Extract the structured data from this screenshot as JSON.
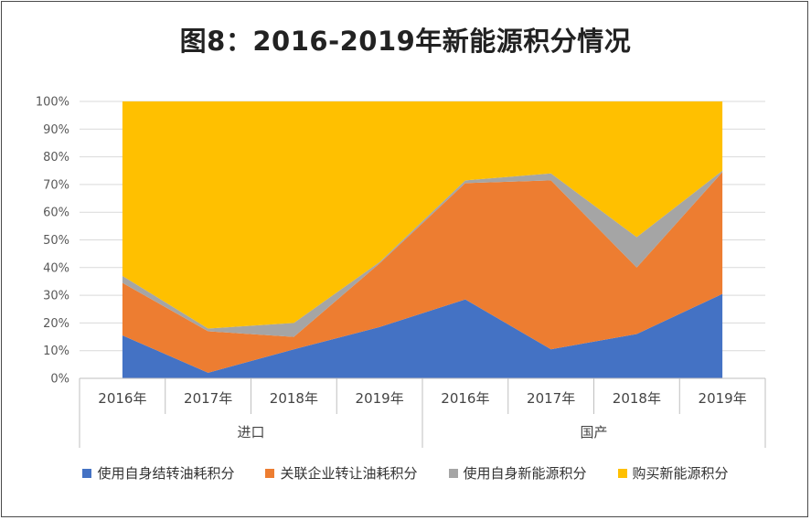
{
  "chart_data": {
    "type": "area",
    "stacked": "percent",
    "title": "图8：2016-2019年新能源积分情况",
    "categories": [
      "2016年",
      "2017年",
      "2018年",
      "2019年",
      "2016年",
      "2017年",
      "2018年",
      "2019年"
    ],
    "groups": [
      {
        "label": "进口",
        "categories": [
          "2016年",
          "2017年",
          "2018年",
          "2019年"
        ]
      },
      {
        "label": "国产",
        "categories": [
          "2016年",
          "2017年",
          "2018年",
          "2019年"
        ]
      }
    ],
    "y_ticks": [
      "0%",
      "10%",
      "20%",
      "30%",
      "40%",
      "50%",
      "60%",
      "70%",
      "80%",
      "90%",
      "100%"
    ],
    "ylim": [
      0,
      100
    ],
    "grid": true,
    "legend_position": "bottom",
    "series": [
      {
        "name": "使用自身结转油耗积分",
        "color": "#4472c4",
        "values": [
          15.5,
          2,
          10.5,
          18.5,
          28.5,
          10.5,
          16,
          30.5
        ]
      },
      {
        "name": "关联企业转让油耗积分",
        "color": "#ed7d31",
        "values": [
          19,
          15,
          4.5,
          23,
          42,
          61,
          24,
          44
        ]
      },
      {
        "name": "使用自身新能源积分",
        "color": "#a5a5a5",
        "values": [
          2.5,
          1,
          5,
          0.5,
          1,
          2.5,
          11,
          0.5
        ]
      },
      {
        "name": "购买新能源积分",
        "color": "#ffc000",
        "values": [
          63,
          82,
          80,
          58,
          28.5,
          26,
          49,
          25
        ]
      }
    ]
  }
}
